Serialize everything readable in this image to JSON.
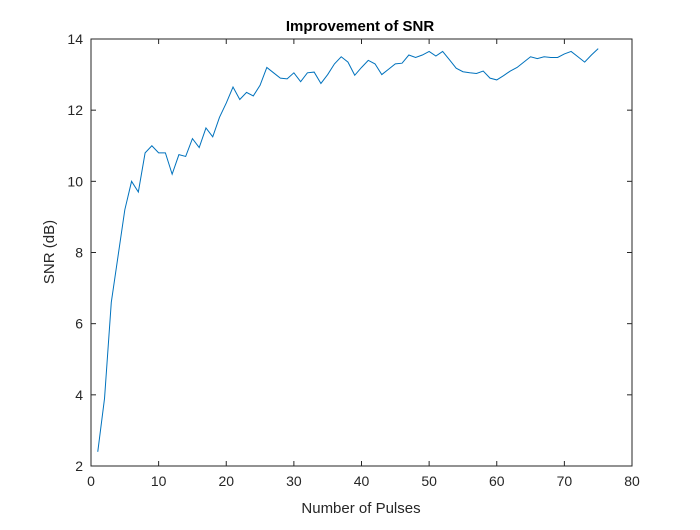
{
  "chart_data": {
    "type": "line",
    "title": "Improvement of SNR",
    "xlabel": "Number of Pulses",
    "ylabel": "SNR (dB)",
    "xlim": [
      0,
      80
    ],
    "ylim": [
      2,
      14
    ],
    "xticks": [
      0,
      10,
      20,
      30,
      40,
      50,
      60,
      70,
      80
    ],
    "yticks": [
      2,
      4,
      6,
      8,
      10,
      12,
      14
    ],
    "grid": false,
    "line_color": "#0072BD",
    "series": [
      {
        "x": [
          1,
          2,
          3,
          4,
          5,
          6,
          7,
          8,
          9,
          10,
          11,
          12,
          13,
          14,
          15,
          16,
          17,
          18,
          19,
          20,
          21,
          22,
          23,
          24,
          25,
          26,
          27,
          28,
          29,
          30,
          31,
          32,
          33,
          34,
          35,
          36,
          37,
          38,
          39,
          40,
          41,
          42,
          43,
          44,
          45,
          46,
          47,
          48,
          49,
          50,
          51,
          52,
          53,
          54,
          55,
          56,
          57,
          58,
          59,
          60,
          61,
          62,
          63,
          64,
          65,
          66,
          67,
          68,
          69,
          70,
          71,
          72,
          73,
          74,
          75
        ],
        "values": [
          2.4,
          3.9,
          6.6,
          7.9,
          9.2,
          10.0,
          9.7,
          10.8,
          11.0,
          10.8,
          10.8,
          10.2,
          10.75,
          10.7,
          11.2,
          10.95,
          11.5,
          11.25,
          11.8,
          12.2,
          12.65,
          12.3,
          12.5,
          12.4,
          12.7,
          13.2,
          13.05,
          12.9,
          12.88,
          13.05,
          12.8,
          13.05,
          13.07,
          12.75,
          13.0,
          13.3,
          13.5,
          13.35,
          12.98,
          13.2,
          13.4,
          13.3,
          13.0,
          13.15,
          13.3,
          13.32,
          13.55,
          13.48,
          13.55,
          13.65,
          13.52,
          13.65,
          13.42,
          13.18,
          13.08,
          13.05,
          13.03,
          13.1,
          12.9,
          12.85,
          12.97,
          13.1,
          13.2,
          13.35,
          13.5,
          13.45,
          13.5,
          13.48,
          13.48,
          13.58,
          13.65,
          13.5,
          13.35,
          13.55,
          13.73
        ]
      }
    ]
  }
}
